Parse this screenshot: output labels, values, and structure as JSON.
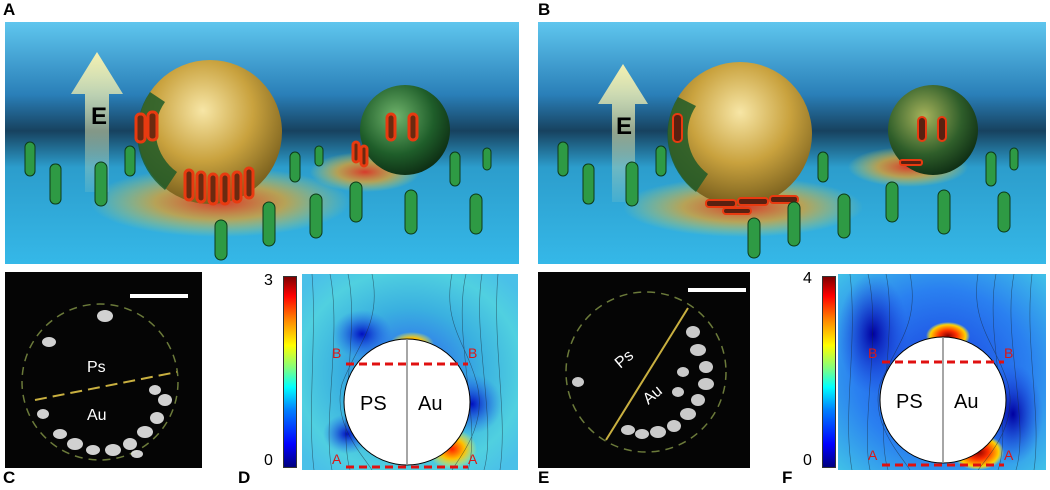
{
  "panels": {
    "A": "A",
    "B": "B",
    "C": "C",
    "D": "D",
    "E": "E",
    "F": "F"
  },
  "scene_labels": {
    "field_arrow_left": "E",
    "field_arrow_right": "E"
  },
  "micro_c": {
    "hemisphere_top": "Ps",
    "hemisphere_bottom": "Au"
  },
  "micro_e": {
    "hemisphere_top": "Ps",
    "hemisphere_bottom": "Au"
  },
  "field_d": {
    "colorbar_max": "3",
    "colorbar_min": "0",
    "left_half": "PS",
    "right_half": "Au",
    "upper_line_left": "B",
    "upper_line_right": "B",
    "lower_line_left": "A",
    "lower_line_right": "A"
  },
  "field_f": {
    "colorbar_max": "4",
    "colorbar_min": "0",
    "left_half": "PS",
    "right_half": "Au",
    "upper_line_left": "B",
    "upper_line_right": "B",
    "lower_line_left": "A",
    "lower_line_right": "A"
  },
  "colors": {
    "water": "#2aa9e0",
    "gold": "#d8b24a",
    "ps_green": "#1f6b2e",
    "bacteria": "#2e9a44",
    "highlight_red": "#e83a10",
    "dashed_red": "#e01010"
  }
}
